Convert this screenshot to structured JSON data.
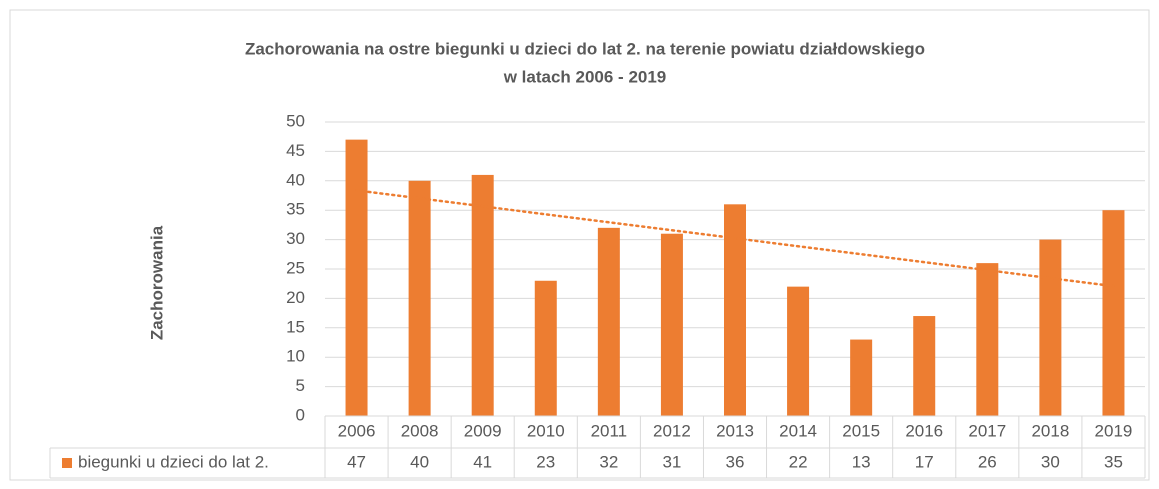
{
  "chart_data": {
    "type": "bar",
    "title": [
      "Zachorowania na ostre biegunki u dzieci do lat 2. na terenie powiatu działdowskiego",
      "w latach 2006 - 2019"
    ],
    "y_label": "Zachorowania",
    "categories": [
      "2006",
      "2008",
      "2009",
      "2010",
      "2011",
      "2012",
      "2013",
      "2014",
      "2015",
      "2016",
      "2017",
      "2018",
      "2019"
    ],
    "series": [
      {
        "name": "biegunki u dzieci do lat 2.",
        "color": "#ed7d31",
        "values": [
          47,
          40,
          41,
          23,
          32,
          31,
          36,
          22,
          13,
          17,
          26,
          30,
          35
        ]
      }
    ],
    "ylim": [
      0,
      50
    ],
    "yticks": [
      0,
      5,
      10,
      15,
      20,
      25,
      30,
      35,
      40,
      45,
      50
    ],
    "grid": true,
    "trendline": "linear",
    "data_table": true
  }
}
